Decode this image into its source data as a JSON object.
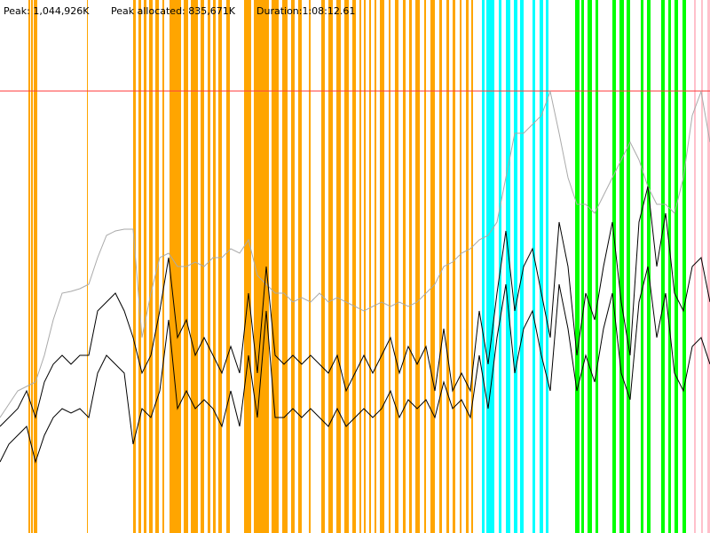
{
  "chart_data": {
    "type": "line",
    "peak": {
      "value": 1044926,
      "label": "Peak: 1,044,926K"
    },
    "peak_allocated": {
      "value": 835671,
      "label": "Peak allocated: 835,671K"
    },
    "duration": "Duration:1:08:12.61",
    "peak_line_color": "#ff4040",
    "xlim": [
      0,
      80
    ],
    "ylim": [
      0,
      1260000
    ],
    "x": [
      0,
      1,
      2,
      3,
      4,
      5,
      6,
      7,
      8,
      9,
      10,
      11,
      12,
      13,
      14,
      15,
      16,
      17,
      18,
      19,
      20,
      21,
      22,
      23,
      24,
      25,
      26,
      27,
      28,
      29,
      30,
      31,
      32,
      33,
      34,
      35,
      36,
      37,
      38,
      39,
      40,
      41,
      42,
      43,
      44,
      45,
      46,
      47,
      48,
      49,
      50,
      51,
      52,
      53,
      54,
      55,
      56,
      57,
      58,
      59,
      60,
      61,
      62,
      63,
      64,
      65,
      66,
      67,
      68,
      69,
      70,
      71,
      72,
      73,
      74,
      75,
      76,
      77,
      78,
      79,
      80
    ],
    "series": [
      {
        "color": "#aaaaaa",
        "values": [
          273000,
          304500,
          336000,
          346500,
          357000,
          420000,
          504000,
          567000,
          571200,
          577500,
          588000,
          651000,
          703500,
          714000,
          718200,
          718200,
          462000,
          567000,
          651000,
          661500,
          630000,
          630000,
          640500,
          630000,
          651000,
          651000,
          672000,
          661500,
          693000,
          609000,
          588000,
          567000,
          567000,
          546000,
          556500,
          546000,
          567000,
          546000,
          556500,
          546000,
          535500,
          525000,
          535500,
          546000,
          535500,
          546000,
          535500,
          546000,
          567000,
          588000,
          630000,
          640500,
          661500,
          672000,
          693000,
          703500,
          735000,
          840000,
          945000,
          945000,
          966000,
          987000,
          1043700,
          945000,
          840000,
          777000,
          777000,
          756000,
          798000,
          840000,
          882000,
          924000,
          882000,
          819000,
          777000,
          777000,
          756000,
          840000,
          987000,
          1043700,
          924000
        ]
      },
      {
        "color": "#000000",
        "values": [
          252000,
          273000,
          294000,
          336000,
          273000,
          357000,
          399000,
          420000,
          399000,
          420000,
          420000,
          525000,
          546000,
          567000,
          525000,
          462000,
          378000,
          420000,
          525000,
          651000,
          462000,
          504000,
          420000,
          462000,
          420000,
          378000,
          441000,
          378000,
          567000,
          378000,
          630000,
          420000,
          399000,
          420000,
          399000,
          420000,
          399000,
          378000,
          420000,
          336000,
          378000,
          420000,
          378000,
          420000,
          462000,
          378000,
          441000,
          399000,
          441000,
          336000,
          483000,
          336000,
          378000,
          336000,
          525000,
          399000,
          567000,
          714000,
          525000,
          630000,
          672000,
          567000,
          462000,
          735000,
          630000,
          420000,
          567000,
          504000,
          630000,
          735000,
          546000,
          420000,
          735000,
          819000,
          630000,
          756000,
          567000,
          525000,
          630000,
          651000,
          546000
        ]
      },
      {
        "color": "#000000",
        "values": [
          168000,
          210000,
          231000,
          252000,
          168000,
          231000,
          273000,
          294000,
          283500,
          294000,
          273000,
          378000,
          420000,
          399000,
          378000,
          210000,
          294000,
          273000,
          336000,
          504000,
          294000,
          336000,
          294000,
          315000,
          294000,
          252000,
          336000,
          252000,
          420000,
          273000,
          525000,
          273000,
          273000,
          294000,
          273000,
          294000,
          273000,
          252000,
          294000,
          252000,
          273000,
          294000,
          273000,
          294000,
          336000,
          273000,
          315000,
          294000,
          315000,
          273000,
          357000,
          294000,
          315000,
          273000,
          420000,
          294000,
          462000,
          588000,
          378000,
          483000,
          525000,
          420000,
          336000,
          588000,
          483000,
          336000,
          420000,
          357000,
          483000,
          567000,
          378000,
          315000,
          546000,
          630000,
          462000,
          567000,
          378000,
          336000,
          441000,
          462000,
          399000
        ]
      }
    ],
    "events": [
      {
        "color": "#ffa500",
        "spans": [
          [
            3.2,
            3.4
          ],
          [
            3.5,
            3.7
          ],
          [
            3.8,
            4.2
          ],
          [
            9.8,
            9.9
          ],
          [
            15,
            15.3
          ],
          [
            15.6,
            15.9
          ],
          [
            16.2,
            16.5
          ],
          [
            16.8,
            17.2
          ],
          [
            17.5,
            17.9
          ],
          [
            18.3,
            18.5
          ],
          [
            19.1,
            20.4
          ],
          [
            20.7,
            21.2
          ],
          [
            21.5,
            22.3
          ],
          [
            22.6,
            23
          ],
          [
            23.4,
            23.7
          ],
          [
            24,
            24.3
          ],
          [
            24.6,
            25
          ],
          [
            25.5,
            25.9
          ],
          [
            27.5,
            28.3
          ],
          [
            28.6,
            30.3
          ],
          [
            30.6,
            31.4
          ],
          [
            31.8,
            32.4
          ],
          [
            32.8,
            33.2
          ],
          [
            33.6,
            34
          ],
          [
            34.8,
            35
          ],
          [
            36.2,
            36.6
          ],
          [
            37,
            37.5
          ],
          [
            37.9,
            38.4
          ],
          [
            38.8,
            39.3
          ],
          [
            39.7,
            40.1
          ],
          [
            40.5,
            40.7
          ],
          [
            41,
            41.2
          ],
          [
            41.6,
            41.8
          ],
          [
            42.2,
            42.4
          ],
          [
            42.8,
            43.3
          ],
          [
            43.8,
            44
          ],
          [
            44.5,
            44.9
          ],
          [
            45.4,
            45.7
          ],
          [
            46.1,
            46.4
          ],
          [
            46.8,
            47.3
          ],
          [
            47.8,
            48
          ],
          [
            48.5,
            49
          ],
          [
            49.5,
            49.8
          ],
          [
            50.3,
            50.6
          ],
          [
            51,
            51.3
          ],
          [
            51.8,
            52
          ],
          [
            52.5,
            52.8
          ],
          [
            53.1,
            53.3
          ]
        ]
      },
      {
        "color": "#00ffff",
        "spans": [
          [
            54.3,
            54.6
          ],
          [
            54.8,
            55.7
          ],
          [
            56.2,
            56.5
          ],
          [
            57,
            57.5
          ],
          [
            57.9,
            58.3
          ],
          [
            58.6,
            59
          ],
          [
            60,
            60.3
          ],
          [
            60.8,
            61.2
          ],
          [
            61.5,
            61.8
          ]
        ]
      },
      {
        "color": "#00ff00",
        "spans": [
          [
            64.8,
            65.3
          ],
          [
            65.5,
            65.8
          ],
          [
            66.2,
            66.7
          ],
          [
            67.1,
            67.4
          ],
          [
            69,
            69.4
          ],
          [
            69.8,
            70.3
          ],
          [
            70.6,
            71
          ],
          [
            72.2,
            72.5
          ],
          [
            72.9,
            73.3
          ],
          [
            74.5,
            74.9
          ],
          [
            75.3,
            75.6
          ],
          [
            76,
            76.4
          ],
          [
            76.9,
            77.3
          ]
        ]
      },
      {
        "color": "#ffc0cb",
        "spans": [
          [
            78.2,
            78.4
          ],
          [
            79,
            79.2
          ],
          [
            79.7,
            80
          ]
        ]
      }
    ]
  }
}
